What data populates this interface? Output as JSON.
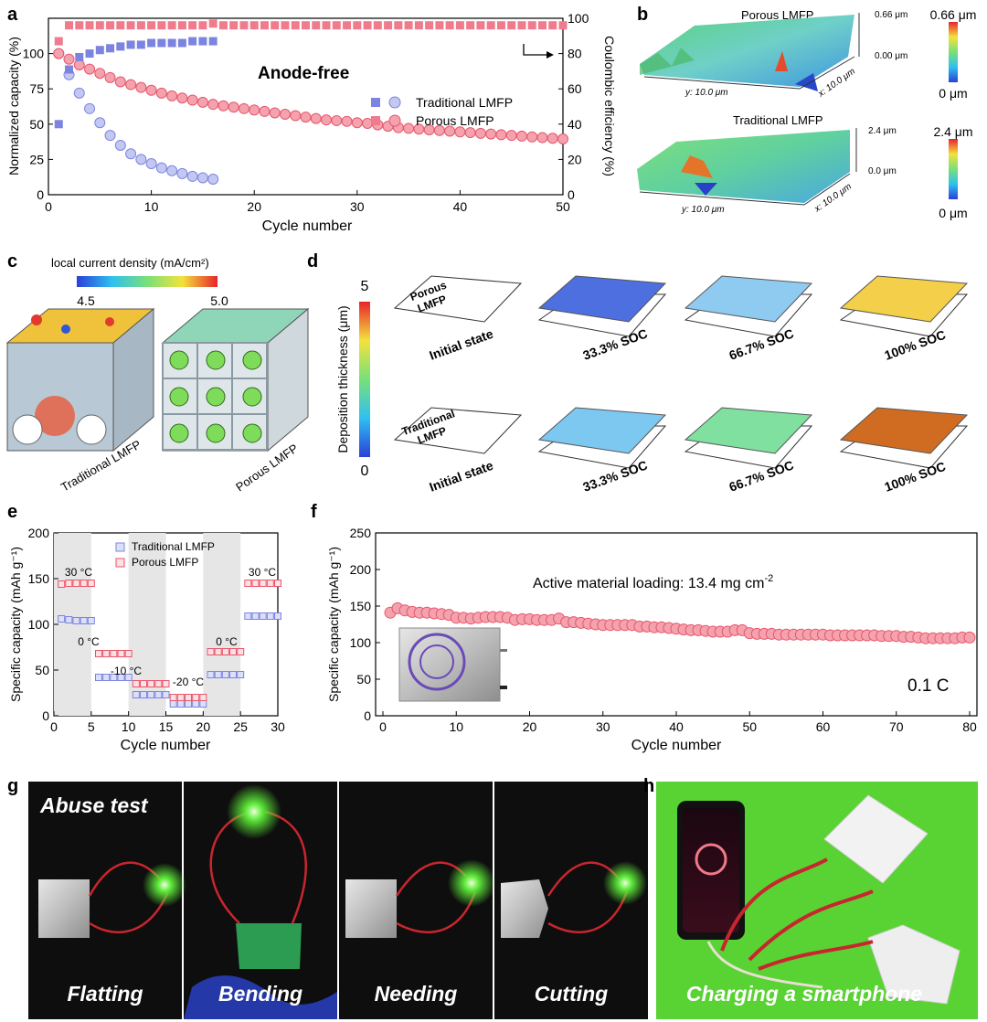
{
  "panels": {
    "a": {
      "label": "a",
      "title": "Anode-free",
      "xlabel": "Cycle number",
      "ylabel_left": "Normalized capacity (%)",
      "ylabel_right": "Coulombic efficiency (%)",
      "legend": [
        "Traditional LMFP",
        "Porous LMFP"
      ]
    },
    "b": {
      "label": "b",
      "top_title": "Porous LMFP",
      "bottom_title": "Traditional LMFP",
      "top_z_max": "0.66 μm",
      "top_z_min": "0.00 μm",
      "bottom_z_max": "2.4 μm",
      "bottom_z_min": "0.0 μm",
      "axis_y": "y: 10.0 μm",
      "axis_x": "x: 10.0 μm",
      "top_cbar_max": "0.66 μm",
      "top_cbar_min": "0 μm",
      "bottom_cbar_max": "2.4 μm",
      "bottom_cbar_min": "0 μm"
    },
    "c": {
      "label": "c",
      "cbar_title": "local current density (mA/cm²)",
      "cbar_min": "4.5",
      "cbar_max": "5.0",
      "left_caption": "Traditional LMFP",
      "right_caption": "Porous LMFP"
    },
    "d": {
      "label": "d",
      "cbar_title": "Deposition thickness (μm)",
      "cbar_max": "5",
      "cbar_min": "0",
      "top_row_name": [
        "Porous",
        "LMFP"
      ],
      "bottom_row_name": [
        "Traditional",
        "LMFP"
      ],
      "stages": [
        "Initial state",
        "33.3% SOC",
        "66.7% SOC",
        "100% SOC"
      ]
    },
    "e": {
      "label": "e",
      "xlabel": "Cycle number",
      "ylabel": "Specific capacity (mAh g⁻¹)",
      "legend": [
        "Traditional LMFP",
        "Porous LMFP"
      ],
      "temps": [
        "30 °C",
        "0 °C",
        "-10 °C",
        "-20 °C",
        "0 °C",
        "30 °C"
      ]
    },
    "f": {
      "label": "f",
      "xlabel": "Cycle number",
      "ylabel": "Specific capacity (mAh g⁻¹)",
      "annotation": "Active material loading: 13.4 mg cm",
      "annotation_sup": "-2",
      "rate": "0.1 C"
    },
    "g": {
      "label": "g",
      "title": "Abuse test",
      "captions": [
        "Flatting",
        "Bending",
        "Needing",
        "Cutting"
      ]
    },
    "h": {
      "label": "h",
      "caption": "Charging a smartphone"
    }
  },
  "colors": {
    "traditional": "#7b84e0",
    "traditional_fill": "#c3c8f0",
    "porous": "#e8566a",
    "porous_fill": "#f3a2ae",
    "background_photo": "#101010",
    "green_bg": "#59d233"
  },
  "chart_data": [
    {
      "panel": "a",
      "type": "scatter",
      "xlim": [
        0,
        50
      ],
      "ylim_left": [
        0,
        125
      ],
      "ylim_right": [
        0,
        100
      ],
      "x_ticks": [
        0,
        10,
        20,
        30,
        40,
        50
      ],
      "y_ticks_left": [
        0,
        25,
        50,
        75,
        100
      ],
      "y_ticks_right": [
        0,
        20,
        40,
        60,
        80,
        100
      ],
      "series": [
        {
          "name": "Traditional LMFP",
          "axis": "left",
          "marker": "circle",
          "x": [
            1,
            2,
            3,
            4,
            5,
            6,
            7,
            8,
            9,
            10,
            11,
            12,
            13,
            14,
            15,
            16
          ],
          "values": [
            100,
            85,
            72,
            61,
            51,
            42,
            35,
            29,
            25,
            22,
            19,
            17,
            15,
            13,
            12,
            11
          ]
        },
        {
          "name": "Porous LMFP",
          "axis": "left",
          "marker": "circle",
          "x": [
            1,
            2,
            3,
            4,
            5,
            6,
            7,
            8,
            9,
            10,
            11,
            12,
            13,
            14,
            15,
            16,
            17,
            18,
            19,
            20,
            21,
            22,
            23,
            24,
            25,
            26,
            27,
            28,
            29,
            30,
            31,
            32,
            33,
            34,
            35,
            36,
            37,
            38,
            39,
            40,
            41,
            42,
            43,
            44,
            45,
            46,
            47,
            48,
            49,
            50
          ],
          "values": [
            100,
            96,
            92,
            89,
            86,
            83,
            80,
            78,
            76,
            74,
            72,
            70,
            68.5,
            67,
            65.5,
            64,
            63,
            62,
            61,
            60,
            59,
            58,
            57,
            56,
            55,
            54,
            53,
            52.5,
            52,
            51,
            50.5,
            49.5,
            48.5,
            47.5,
            47,
            46.5,
            46,
            45.5,
            45,
            44.5,
            44,
            43.5,
            43,
            42.5,
            42,
            41.5,
            41,
            40.5,
            40,
            39.5
          ]
        },
        {
          "name": "Traditional LMFP",
          "axis": "right",
          "marker": "square",
          "x": [
            1,
            2,
            3,
            4,
            5,
            6,
            7,
            8,
            9,
            10,
            11,
            12,
            13,
            14,
            15,
            16
          ],
          "values": [
            40,
            71,
            78,
            80,
            82,
            83,
            84,
            85,
            85,
            86,
            86,
            86,
            86,
            87,
            87,
            87
          ]
        },
        {
          "name": "Porous LMFP",
          "axis": "right",
          "marker": "square",
          "x": [
            1,
            2,
            3,
            4,
            5,
            6,
            7,
            8,
            9,
            10,
            11,
            12,
            13,
            14,
            15,
            16,
            17,
            18,
            19,
            20,
            21,
            22,
            23,
            24,
            25,
            26,
            27,
            28,
            29,
            30,
            31,
            32,
            33,
            34,
            35,
            36,
            37,
            38,
            39,
            40,
            41,
            42,
            43,
            44,
            45,
            46,
            47,
            48,
            49,
            50
          ],
          "values": [
            87,
            96,
            96,
            96,
            96,
            96,
            96,
            96,
            96,
            96,
            96,
            96,
            96,
            96,
            96,
            97,
            96,
            96,
            96,
            96,
            96,
            96,
            96,
            96,
            96,
            96,
            96,
            96,
            96,
            96,
            96,
            96,
            96,
            96,
            96,
            96,
            96,
            96,
            96,
            96,
            96,
            96,
            96,
            96,
            96,
            96,
            96,
            96,
            96,
            96
          ]
        }
      ]
    },
    {
      "panel": "e",
      "type": "scatter",
      "xlim": [
        0,
        30
      ],
      "ylim": [
        0,
        200
      ],
      "x_ticks": [
        0,
        5,
        10,
        15,
        20,
        25,
        30
      ],
      "y_ticks": [
        0,
        50,
        100,
        150,
        200
      ],
      "series": [
        {
          "name": "Traditional LMFP",
          "x": [
            1,
            2,
            3,
            4,
            5,
            6,
            7,
            8,
            9,
            10,
            11,
            12,
            13,
            14,
            15,
            16,
            17,
            18,
            19,
            20,
            21,
            22,
            23,
            24,
            25,
            26,
            27,
            28,
            29,
            30
          ],
          "values": [
            106,
            105,
            104,
            104,
            104,
            42,
            42,
            42,
            42,
            42,
            23,
            23,
            23,
            23,
            23,
            13,
            13,
            13,
            13,
            13,
            45,
            45,
            45,
            45,
            45,
            109,
            109,
            109,
            109,
            109
          ]
        },
        {
          "name": "Porous LMFP",
          "x": [
            1,
            2,
            3,
            4,
            5,
            6,
            7,
            8,
            9,
            10,
            11,
            12,
            13,
            14,
            15,
            16,
            17,
            18,
            19,
            20,
            21,
            22,
            23,
            24,
            25,
            26,
            27,
            28,
            29,
            30
          ],
          "values": [
            144,
            145,
            145,
            145,
            145,
            68,
            68,
            68,
            68,
            68,
            35,
            35,
            35,
            35,
            35,
            20,
            20,
            20,
            20,
            20,
            70,
            70,
            70,
            70,
            70,
            145,
            145,
            145,
            145,
            145
          ]
        }
      ]
    },
    {
      "panel": "f",
      "type": "scatter",
      "xlim": [
        0,
        80
      ],
      "ylim": [
        0,
        250
      ],
      "x_ticks": [
        0,
        10,
        20,
        30,
        40,
        50,
        60,
        70,
        80
      ],
      "y_ticks": [
        0,
        50,
        100,
        150,
        200,
        250
      ],
      "series": [
        {
          "name": "Porous LMFP",
          "x": [
            1,
            2,
            3,
            4,
            5,
            6,
            7,
            8,
            9,
            10,
            11,
            12,
            13,
            14,
            15,
            16,
            17,
            18,
            19,
            20,
            21,
            22,
            23,
            24,
            25,
            26,
            27,
            28,
            29,
            30,
            31,
            32,
            33,
            34,
            35,
            36,
            37,
            38,
            39,
            40,
            41,
            42,
            43,
            44,
            45,
            46,
            47,
            48,
            49,
            50,
            51,
            52,
            53,
            54,
            55,
            56,
            57,
            58,
            59,
            60,
            61,
            62,
            63,
            64,
            65,
            66,
            67,
            68,
            69,
            70,
            71,
            72,
            73,
            74,
            75,
            76,
            77,
            78,
            79,
            80
          ],
          "values": [
            141,
            147,
            144,
            142,
            141,
            141,
            140,
            139,
            138,
            134,
            134,
            133,
            134,
            135,
            135,
            135,
            134,
            131,
            132,
            132,
            131,
            131,
            131,
            133,
            128,
            128,
            127,
            126,
            125,
            124,
            124,
            124,
            124,
            124,
            122,
            122,
            121,
            121,
            120,
            119,
            118,
            117,
            117,
            116,
            115,
            115,
            115,
            117,
            117,
            113,
            112,
            112,
            112,
            111,
            111,
            111,
            111,
            111,
            111,
            111,
            110,
            110,
            110,
            110,
            110,
            110,
            110,
            109,
            109,
            109,
            108,
            108,
            107,
            106,
            106,
            106,
            106,
            106,
            107,
            107
          ]
        }
      ]
    }
  ]
}
